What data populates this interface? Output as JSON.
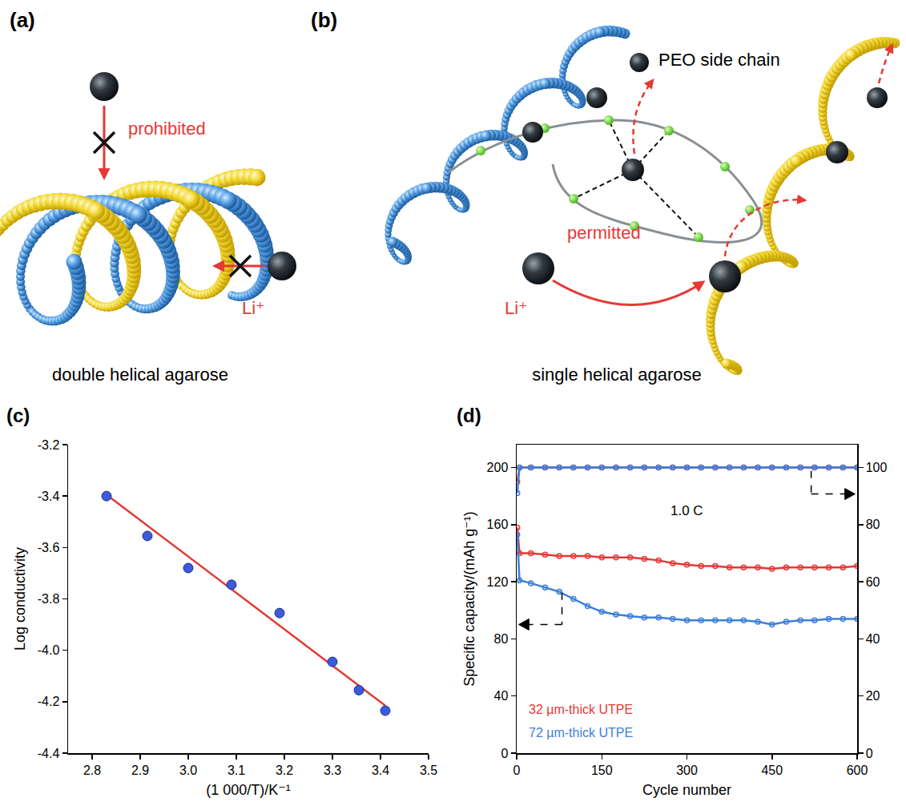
{
  "panels": [
    "(a)",
    "(b)",
    "(c)",
    "(d)"
  ],
  "diagrams": [
    {
      "caption": "double helical agarose",
      "labels": {
        "blocked": "prohibited",
        "ion": "Li⁺"
      }
    },
    {
      "caption": "single helical agarose",
      "labels": {
        "side_chain": "PEO side chain",
        "allowed": "permitted",
        "ion": "Li⁺"
      }
    }
  ],
  "chart_data": [
    {
      "type": "scatter",
      "xlabel": "(1 000/T)/K⁻¹",
      "ylabel": "Log conductivity",
      "xlim": [
        2.75,
        3.5
      ],
      "xticks": [
        2.8,
        2.9,
        {
          "value": 3,
          "label": "3.0"
        },
        3.1,
        3.2,
        3.3,
        3.4,
        3.5
      ],
      "ylim": [
        -4.4,
        -3.2
      ],
      "yticks": [
        -4.4,
        -4.2,
        {
          "value": -4,
          "label": "-4.0"
        },
        -3.8,
        -3.6,
        -3.4,
        -3.2
      ],
      "grid": false,
      "series": [
        {
          "type": "line",
          "line_style": "solid",
          "color": "#e53935",
          "x": [
            2.83,
            3.41
          ],
          "values": [
            -3.395,
            -4.215
          ]
        },
        {
          "type": "scatter",
          "marker": "circle",
          "color": "#3b5bdb",
          "x": [
            2.83,
            2.915,
            3.0,
            3.09,
            3.19,
            3.3,
            3.355,
            3.41
          ],
          "values": [
            -3.4,
            -3.555,
            -3.68,
            -3.745,
            -3.855,
            -4.045,
            -4.155,
            -4.235
          ]
        }
      ]
    },
    {
      "type": "line",
      "xlabel": "Cycle number",
      "ylabel": "Specific capacity/(mAh g⁻¹)",
      "annotations": [
        "1.0 C"
      ],
      "xlim": [
        0,
        600
      ],
      "xticks": [
        0,
        150,
        300,
        450,
        600
      ],
      "ylim": [
        0,
        216
      ],
      "yticks": [
        0,
        40,
        80,
        120,
        160,
        200
      ],
      "y2lim": [
        0,
        108
      ],
      "y2ticks": [
        0,
        20,
        40,
        60,
        80,
        100
      ],
      "grid": false,
      "legend": "lower left",
      "x": [
        1,
        5,
        25,
        50,
        75,
        100,
        125,
        150,
        175,
        200,
        225,
        250,
        275,
        300,
        325,
        350,
        375,
        400,
        425,
        450,
        475,
        500,
        525,
        550,
        575,
        600
      ],
      "series": [
        {
          "name": "32 µm-thick UTPE",
          "color": "#e53935",
          "marker": "circle-open",
          "line_style": "solid",
          "values": [
            158,
            140,
            140,
            139,
            138,
            138,
            138,
            137,
            137,
            137,
            136,
            135,
            133,
            132,
            131,
            131,
            130,
            130,
            130,
            129,
            130,
            130,
            130,
            130,
            130,
            131
          ]
        },
        {
          "name": "72 µm-thick UTPE",
          "color": "#3d7fd9",
          "marker": "circle-open",
          "line_style": "solid",
          "values": [
            153,
            121,
            119,
            116,
            113,
            108,
            103,
            99,
            97,
            96,
            95,
            95,
            94,
            93,
            93,
            93,
            93,
            93,
            92,
            90,
            92,
            93,
            93,
            94,
            94,
            94
          ]
        },
        {
          "axis": "y2",
          "color": "#e53935",
          "marker": "circle-open",
          "line_style": "solid",
          "values": [
            95,
            100,
            100,
            100,
            100,
            100,
            100,
            100,
            100,
            100,
            100,
            100,
            100,
            100,
            100,
            100,
            100,
            100,
            100,
            100,
            100,
            100,
            100,
            100,
            100,
            100
          ]
        },
        {
          "axis": "y2",
          "color": "#3d7fd9",
          "marker": "circle-open",
          "line_style": "solid",
          "values": [
            91,
            100,
            100,
            100,
            100,
            100,
            100,
            100,
            100,
            100,
            100,
            100,
            100,
            100,
            100,
            100,
            100,
            100,
            100,
            100,
            100,
            100,
            100,
            100,
            100,
            100
          ]
        }
      ]
    }
  ]
}
